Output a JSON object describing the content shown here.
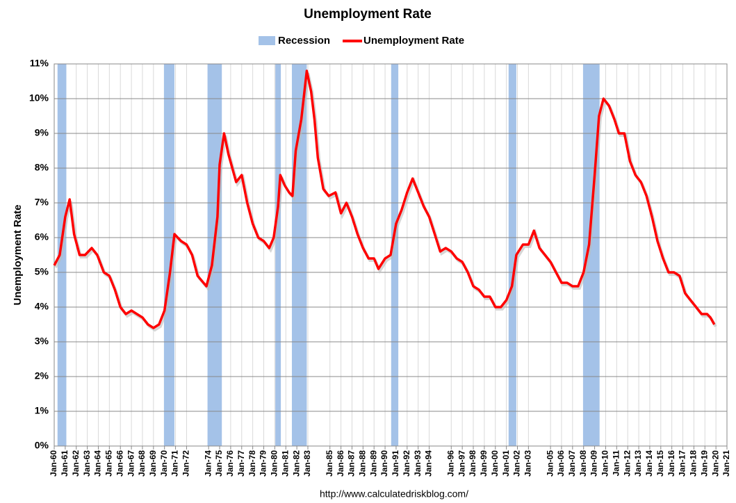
{
  "chart_data": {
    "type": "line",
    "title": "Unemployment Rate",
    "y_label": "Unemployment Rate",
    "source": "http://www.calculatedriskblog.com/",
    "xlim": [
      1960,
      2021
    ],
    "ylim": [
      0,
      11
    ],
    "grid": true,
    "legend": "top",
    "yticks": [
      {
        "value": 0,
        "label": "0%"
      },
      {
        "value": 1,
        "label": "1%"
      },
      {
        "value": 2,
        "label": "2%"
      },
      {
        "value": 3,
        "label": "3%"
      },
      {
        "value": 4,
        "label": "4%"
      },
      {
        "value": 5,
        "label": "5%"
      },
      {
        "value": 6,
        "label": "6%"
      },
      {
        "value": 7,
        "label": "7%"
      },
      {
        "value": 8,
        "label": "8%"
      },
      {
        "value": 9,
        "label": "9%"
      },
      {
        "value": 10,
        "label": "10%"
      },
      {
        "value": 11,
        "label": "11%"
      }
    ],
    "xticks": [
      {
        "value": 1960,
        "label": "Jan-60"
      },
      {
        "value": 1961,
        "label": "Jan-61"
      },
      {
        "value": 1962,
        "label": "Jan-62"
      },
      {
        "value": 1963,
        "label": "Jan-63"
      },
      {
        "value": 1964,
        "label": "Jan-64"
      },
      {
        "value": 1965,
        "label": "Jan-65"
      },
      {
        "value": 1966,
        "label": "Jan-66"
      },
      {
        "value": 1967,
        "label": "Jan-67"
      },
      {
        "value": 1968,
        "label": "Jan-68"
      },
      {
        "value": 1969,
        "label": "Jan-69"
      },
      {
        "value": 1970,
        "label": "Jan-70"
      },
      {
        "value": 1971,
        "label": "Jan-71"
      },
      {
        "value": 1972,
        "label": "Jan-72"
      },
      {
        "value": 1974,
        "label": "Jan-74"
      },
      {
        "value": 1975,
        "label": "Jan-75"
      },
      {
        "value": 1976,
        "label": "Jan-76"
      },
      {
        "value": 1977,
        "label": "Jan-77"
      },
      {
        "value": 1978,
        "label": "Jan-78"
      },
      {
        "value": 1979,
        "label": "Jan-79"
      },
      {
        "value": 1980,
        "label": "Jan-80"
      },
      {
        "value": 1981,
        "label": "Jan-81"
      },
      {
        "value": 1982,
        "label": "Jan-82"
      },
      {
        "value": 1983,
        "label": "Jan-83"
      },
      {
        "value": 1985,
        "label": "Jan-85"
      },
      {
        "value": 1986,
        "label": "Jan-86"
      },
      {
        "value": 1987,
        "label": "Jan-87"
      },
      {
        "value": 1988,
        "label": "Jan-88"
      },
      {
        "value": 1989,
        "label": "Jan-89"
      },
      {
        "value": 1990,
        "label": "Jan-90"
      },
      {
        "value": 1991,
        "label": "Jan-91"
      },
      {
        "value": 1992,
        "label": "Jan-92"
      },
      {
        "value": 1993,
        "label": "Jan-93"
      },
      {
        "value": 1994,
        "label": "Jan-94"
      },
      {
        "value": 1996,
        "label": "Jan-96"
      },
      {
        "value": 1997,
        "label": "Jan-97"
      },
      {
        "value": 1998,
        "label": "Jan-98"
      },
      {
        "value": 1999,
        "label": "Jan-99"
      },
      {
        "value": 2000,
        "label": "Jan-00"
      },
      {
        "value": 2001,
        "label": "Jan-01"
      },
      {
        "value": 2002,
        "label": "Jan-02"
      },
      {
        "value": 2003,
        "label": "Jan-03"
      },
      {
        "value": 2005,
        "label": "Jan-05"
      },
      {
        "value": 2006,
        "label": "Jan-06"
      },
      {
        "value": 2007,
        "label": "Jan-07"
      },
      {
        "value": 2008,
        "label": "Jan-08"
      },
      {
        "value": 2009,
        "label": "Jan-09"
      },
      {
        "value": 2010,
        "label": "Jan-10"
      },
      {
        "value": 2011,
        "label": "Jan-11"
      },
      {
        "value": 2012,
        "label": "Jan-12"
      },
      {
        "value": 2013,
        "label": "Jan-13"
      },
      {
        "value": 2014,
        "label": "Jan-14"
      },
      {
        "value": 2015,
        "label": "Jan-15"
      },
      {
        "value": 2016,
        "label": "Jan-16"
      },
      {
        "value": 2017,
        "label": "Jan-17"
      },
      {
        "value": 2018,
        "label": "Jan-18"
      },
      {
        "value": 2019,
        "label": "Jan-19"
      },
      {
        "value": 2020,
        "label": "Jan-20"
      },
      {
        "value": 2021,
        "label": "Jan-21"
      }
    ],
    "series": [
      {
        "name": "Recession",
        "color": "#a4c2e8",
        "type": "band",
        "ranges": [
          [
            1960.3,
            1961.1
          ],
          [
            1969.95,
            1970.9
          ],
          [
            1973.9,
            1975.2
          ],
          [
            1980.05,
            1980.55
          ],
          [
            1981.55,
            1982.9
          ],
          [
            1990.55,
            1991.2
          ],
          [
            2001.2,
            2001.9
          ],
          [
            2007.95,
            2009.45
          ]
        ]
      },
      {
        "name": "Unemployment Rate",
        "color": "#ff0000",
        "type": "line",
        "x": [
          1960.0,
          1960.5,
          1961.0,
          1961.4,
          1961.8,
          1962.3,
          1962.8,
          1963.4,
          1963.9,
          1964.5,
          1965.0,
          1965.5,
          1966.0,
          1966.5,
          1967.0,
          1967.5,
          1968.0,
          1968.5,
          1969.0,
          1969.5,
          1970.0,
          1970.5,
          1970.9,
          1971.5,
          1972.0,
          1972.5,
          1973.0,
          1973.8,
          1974.3,
          1974.8,
          1975.0,
          1975.4,
          1975.8,
          1976.5,
          1977.0,
          1977.5,
          1978.0,
          1978.5,
          1979.0,
          1979.5,
          1979.9,
          1980.3,
          1980.5,
          1980.9,
          1981.3,
          1981.6,
          1981.9,
          1982.4,
          1982.9,
          1983.3,
          1983.6,
          1983.9,
          1984.4,
          1984.9,
          1985.5,
          1986.0,
          1986.5,
          1987.0,
          1987.5,
          1988.0,
          1988.5,
          1989.0,
          1989.4,
          1990.0,
          1990.5,
          1991.0,
          1991.5,
          1992.0,
          1992.5,
          1993.0,
          1993.5,
          1994.0,
          1994.5,
          1995.0,
          1995.5,
          1996.0,
          1996.5,
          1997.0,
          1997.5,
          1998.0,
          1998.5,
          1999.0,
          1999.5,
          2000.0,
          2000.5,
          2001.0,
          2001.5,
          2001.9,
          2002.5,
          2003.0,
          2003.5,
          2004.0,
          2004.5,
          2005.0,
          2005.5,
          2006.0,
          2006.5,
          2007.0,
          2007.5,
          2008.0,
          2008.5,
          2009.0,
          2009.4,
          2009.8,
          2010.3,
          2010.8,
          2011.2,
          2011.7,
          2012.2,
          2012.7,
          2013.2,
          2013.7,
          2014.2,
          2014.7,
          2015.2,
          2015.7,
          2016.2,
          2016.7,
          2017.2,
          2017.7,
          2018.2,
          2018.7,
          2019.2,
          2019.5,
          2019.85
        ],
        "values": [
          5.2,
          5.5,
          6.6,
          7.1,
          6.1,
          5.5,
          5.5,
          5.7,
          5.5,
          5.0,
          4.9,
          4.5,
          4.0,
          3.8,
          3.9,
          3.8,
          3.7,
          3.5,
          3.4,
          3.5,
          3.9,
          5.0,
          6.1,
          5.9,
          5.8,
          5.5,
          4.9,
          4.6,
          5.2,
          6.6,
          8.1,
          9.0,
          8.4,
          7.6,
          7.8,
          7.0,
          6.4,
          6.0,
          5.9,
          5.7,
          6.0,
          6.9,
          7.8,
          7.5,
          7.3,
          7.2,
          8.5,
          9.4,
          10.8,
          10.2,
          9.4,
          8.3,
          7.4,
          7.2,
          7.3,
          6.7,
          7.0,
          6.6,
          6.1,
          5.7,
          5.4,
          5.4,
          5.1,
          5.4,
          5.5,
          6.4,
          6.8,
          7.3,
          7.7,
          7.3,
          6.9,
          6.6,
          6.1,
          5.6,
          5.7,
          5.6,
          5.4,
          5.3,
          5.0,
          4.6,
          4.5,
          4.3,
          4.3,
          4.0,
          4.0,
          4.2,
          4.6,
          5.5,
          5.8,
          5.8,
          6.2,
          5.7,
          5.5,
          5.3,
          5.0,
          4.7,
          4.7,
          4.6,
          4.6,
          5.0,
          5.8,
          7.8,
          9.5,
          10.0,
          9.8,
          9.4,
          9.0,
          9.0,
          8.2,
          7.8,
          7.6,
          7.2,
          6.6,
          5.9,
          5.4,
          5.0,
          5.0,
          4.9,
          4.4,
          4.2,
          4.0,
          3.8,
          3.8,
          3.7,
          3.5
        ]
      }
    ]
  }
}
